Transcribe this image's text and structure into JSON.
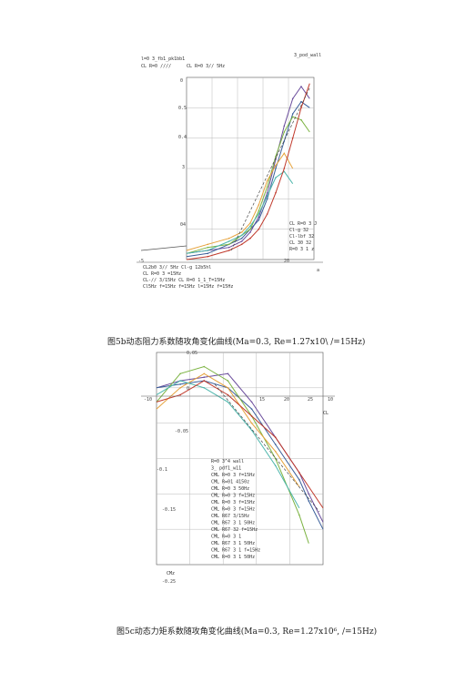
{
  "figure1": {
    "caption": "图5b动态阻力系数随攻角变化曲线(Ma=0.3, Re=1.27x10\\ /=15Hz)",
    "top_label": "3_pod_wall",
    "top_left_labels": [
      "l=0 3_fb1_pk1bb1",
      "CL R=0 ////",
      "CL R=0 3// 5Hz"
    ],
    "legend_right": [
      "CL R=0 3 J",
      "Cl-g 32",
      "Cl-lbf 32",
      "CL 30 32",
      "R=0 3 1 z"
    ],
    "legend_bottom": [
      "CL2b0 3// 5Hz   Cl-g 12b5hl",
      "CL R=0 3 =15Hz",
      "CL-// 3/15Hz     CL R=0 1_1_T=15Hz",
      "Cl5Hz   f=15Hz f=15Hz l=15Hz  f=15Hz"
    ],
    "tick_texts": [
      "0",
      "0.5",
      "0.4",
      "3",
      "04",
      "-5",
      "20",
      "a"
    ]
  },
  "figure2": {
    "caption": "图5c动态力矩系数随攻角变化曲线(Ma=0.3, Re=1.27x10⁶, /=15Hz)",
    "axis_label": "CMz",
    "x_axis_label": "CL",
    "tick_texts": [
      "0.05",
      "0",
      "-10",
      "15",
      "20",
      "25",
      "10",
      "-0.05",
      "-0.1",
      "-0.15",
      "-0.25"
    ],
    "legend": [
      "R=0 3^4 wall",
      "3_ pdf1_w11",
      "CML R=0 3 f=15Hz",
      "CML R=01 4150z",
      "CML R=0 3 50Hz",
      "CML R=0 3 f=15Hz",
      "CML R=0 3 f=15Hz",
      "CML R=0 3 f=15Hz",
      "CML R67 3/15Hz",
      "CML R67 3 1  50Hz",
      "CML R67 32    f=15Hz",
      "CML R=0 3 1",
      "CML R67 3 1  50Hz",
      "CML R67 3 1   f=15Hz",
      "CML R=0 3 1   50Hz"
    ]
  },
  "colors": {
    "grid": "#b8b8b8",
    "axis": "#555555",
    "series": [
      "#6a4c9c",
      "#3a5f9a",
      "#7cb342",
      "#e6a23c",
      "#4db6ac",
      "#c0392b",
      "#8e44ad",
      "#2c3e50",
      "#9ccc65",
      "#f06292",
      "#455a64",
      "#80deea",
      "#ab47bc",
      "#ffb74d"
    ]
  },
  "chart_data": [
    {
      "type": "line",
      "title": "",
      "xlabel": "a",
      "ylabel": "",
      "xlim": [
        -5,
        25
      ],
      "ylim": [
        0,
        0.6
      ],
      "grid": true,
      "legend_placement": "bottom-left",
      "series": [
        {
          "x": [
            -5,
            0,
            5,
            8,
            10,
            12,
            14,
            16,
            18,
            20,
            22,
            24
          ],
          "y": [
            0.02,
            0.03,
            0.04,
            0.06,
            0.09,
            0.14,
            0.22,
            0.33,
            0.44,
            0.53,
            0.57,
            0.53
          ]
        },
        {
          "x": [
            -5,
            0,
            5,
            8,
            10,
            12,
            14,
            16,
            18,
            20,
            22,
            24
          ],
          "y": [
            0.01,
            0.02,
            0.05,
            0.07,
            0.1,
            0.13,
            0.2,
            0.3,
            0.39,
            0.48,
            0.52,
            0.5
          ]
        },
        {
          "x": [
            -5,
            0,
            5,
            8,
            10,
            12,
            14,
            16,
            18,
            20,
            22,
            24
          ],
          "y": [
            0.02,
            0.04,
            0.05,
            0.08,
            0.1,
            0.16,
            0.24,
            0.34,
            0.42,
            0.47,
            0.46,
            0.42
          ]
        },
        {
          "x": [
            -5,
            0,
            5,
            8,
            10,
            12,
            14,
            16,
            18,
            20
          ],
          "y": [
            0.03,
            0.05,
            0.07,
            0.09,
            0.12,
            0.18,
            0.26,
            0.31,
            0.35,
            0.3
          ]
        },
        {
          "x": [
            -5,
            0,
            5,
            8,
            10,
            12,
            14,
            16,
            18,
            20
          ],
          "y": [
            0.02,
            0.03,
            0.06,
            0.08,
            0.11,
            0.15,
            0.21,
            0.27,
            0.29,
            0.25
          ]
        },
        {
          "x": [
            -5,
            0,
            5,
            8,
            10,
            12,
            14,
            16,
            18,
            20,
            22,
            24
          ],
          "y": [
            0.0,
            0.01,
            0.03,
            0.05,
            0.07,
            0.1,
            0.15,
            0.22,
            0.3,
            0.4,
            0.5,
            0.58
          ]
        }
      ]
    },
    {
      "type": "line",
      "title": "",
      "xlabel": "CL",
      "ylabel": "CMz",
      "xlim": [
        -10,
        25
      ],
      "ylim": [
        -0.25,
        0.05
      ],
      "grid": true,
      "legend_placement": "bottom-right",
      "series": [
        {
          "x": [
            -10,
            -5,
            0,
            5,
            10,
            15,
            20,
            22,
            25
          ],
          "y": [
            0.0,
            0.01,
            0.015,
            0.02,
            -0.02,
            -0.07,
            -0.12,
            -0.15,
            -0.19
          ]
        },
        {
          "x": [
            -10,
            -5,
            0,
            5,
            10,
            15,
            20,
            22,
            25
          ],
          "y": [
            0.0,
            0.005,
            0.01,
            0.0,
            -0.03,
            -0.08,
            -0.13,
            -0.16,
            -0.2
          ]
        },
        {
          "x": [
            -10,
            -5,
            0,
            5,
            10,
            15,
            20,
            22
          ],
          "y": [
            -0.02,
            0.02,
            0.03,
            0.01,
            -0.04,
            -0.1,
            -0.18,
            -0.22
          ]
        },
        {
          "x": [
            -10,
            -5,
            0,
            5,
            10,
            15,
            20
          ],
          "y": [
            -0.03,
            0.0,
            0.02,
            0.0,
            -0.05,
            -0.09,
            -0.14
          ]
        },
        {
          "x": [
            -10,
            -5,
            0,
            5,
            10,
            15,
            20
          ],
          "y": [
            -0.01,
            0.01,
            0.0,
            -0.02,
            -0.06,
            -0.11,
            -0.17
          ]
        },
        {
          "x": [
            -10,
            -5,
            0,
            5,
            10,
            15,
            20,
            25
          ],
          "y": [
            -0.02,
            -0.01,
            0.01,
            -0.01,
            -0.04,
            -0.07,
            -0.12,
            -0.17
          ]
        }
      ]
    }
  ]
}
